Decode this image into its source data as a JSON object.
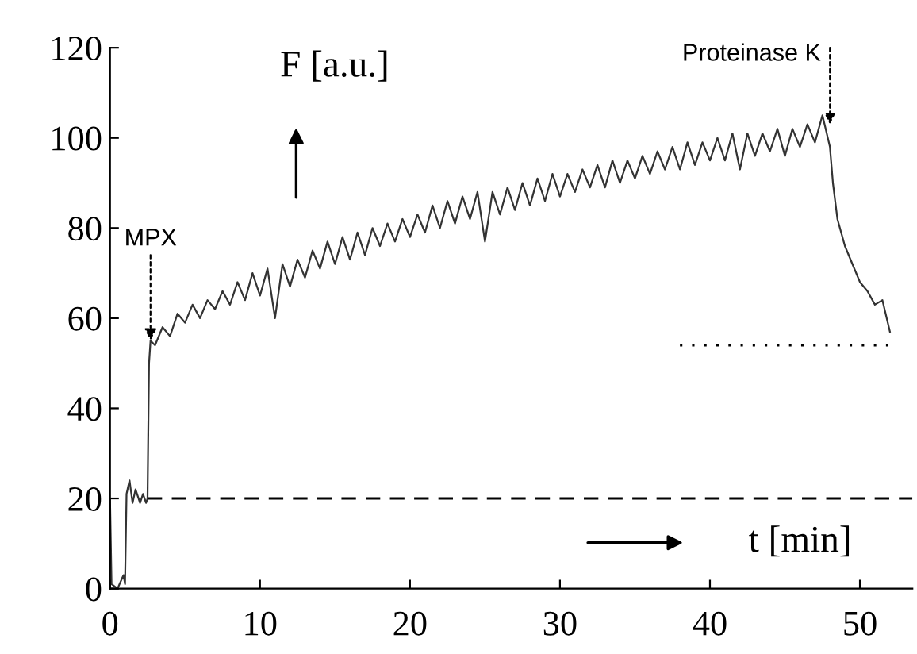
{
  "chart_data": {
    "type": "line",
    "xlabel": "t [min]",
    "ylabel": "F [a.u.]",
    "xlim": [
      0,
      53.5
    ],
    "ylim": [
      0,
      120
    ],
    "xticks": [
      0,
      10,
      20,
      30,
      40,
      50
    ],
    "yticks": [
      0,
      20,
      40,
      60,
      80,
      100,
      120
    ],
    "grid": false,
    "legend": false,
    "marker": "none",
    "annotations": [
      {
        "text": "MPX",
        "x": 2.7,
        "y": 55
      },
      {
        "text": "Proteinase K",
        "x": 48,
        "y": 103
      }
    ],
    "series": [
      {
        "color": "#333333",
        "line_style": "solid",
        "x": [
          0,
          0.1,
          0.5,
          0.9,
          1.0,
          1.1,
          1.3,
          1.5,
          1.7,
          2.0,
          2.2,
          2.4,
          2.5,
          2.6,
          2.7,
          3,
          3.5,
          4,
          4.5,
          5,
          5.5,
          6,
          6.5,
          7,
          7.5,
          8,
          8.5,
          9,
          9.5,
          10,
          10.5,
          11,
          11.5,
          12,
          12.5,
          13,
          13.5,
          14,
          14.5,
          15,
          15.5,
          16,
          16.5,
          17,
          17.5,
          18,
          18.5,
          19,
          19.5,
          20,
          20.5,
          21,
          21.5,
          22,
          22.5,
          23,
          23.5,
          24,
          24.5,
          25,
          25.5,
          26,
          26.5,
          27,
          27.5,
          28,
          28.5,
          29,
          29.5,
          30,
          30.5,
          31,
          31.5,
          32,
          32.5,
          33,
          33.5,
          34,
          34.5,
          35,
          35.5,
          36,
          36.5,
          37,
          37.5,
          38,
          38.5,
          39,
          39.5,
          40,
          40.5,
          41,
          41.5,
          42,
          42.5,
          43,
          43.5,
          44,
          44.5,
          45,
          45.5,
          46,
          46.5,
          47,
          47.5,
          48,
          48.2,
          48.5,
          49,
          49.5,
          50,
          50.5,
          51,
          51.5,
          52
        ],
        "values": [
          20,
          1,
          0,
          3,
          1,
          21,
          24,
          19,
          22,
          19,
          21,
          19,
          20,
          50,
          55,
          54,
          58,
          56,
          61,
          59,
          63,
          60,
          64,
          62,
          66,
          63,
          68,
          64,
          70,
          65,
          71,
          60,
          72,
          67,
          73,
          69,
          75,
          71,
          77,
          72,
          78,
          73,
          79,
          74,
          80,
          76,
          81,
          77,
          82,
          78,
          83,
          79,
          85,
          80,
          86,
          81,
          87,
          82,
          88,
          77,
          88,
          83,
          89,
          84,
          90,
          85,
          91,
          86,
          92,
          87,
          92,
          88,
          93,
          89,
          94,
          89,
          95,
          90,
          95,
          91,
          96,
          92,
          97,
          93,
          98,
          93,
          99,
          94,
          99,
          95,
          100,
          95,
          101,
          93,
          101,
          96,
          101,
          97,
          102,
          96,
          102,
          98,
          103,
          99,
          105,
          98,
          90,
          82,
          76,
          72,
          68,
          66,
          63,
          64,
          57
        ]
      },
      {
        "color": "#000000",
        "line_style": "dashed",
        "x": [
          2.5,
          53.5
        ],
        "values": [
          20,
          20
        ]
      },
      {
        "color": "#000000",
        "line_style": "dotted",
        "x": [
          38,
          52
        ],
        "values": [
          54,
          54
        ]
      }
    ]
  }
}
